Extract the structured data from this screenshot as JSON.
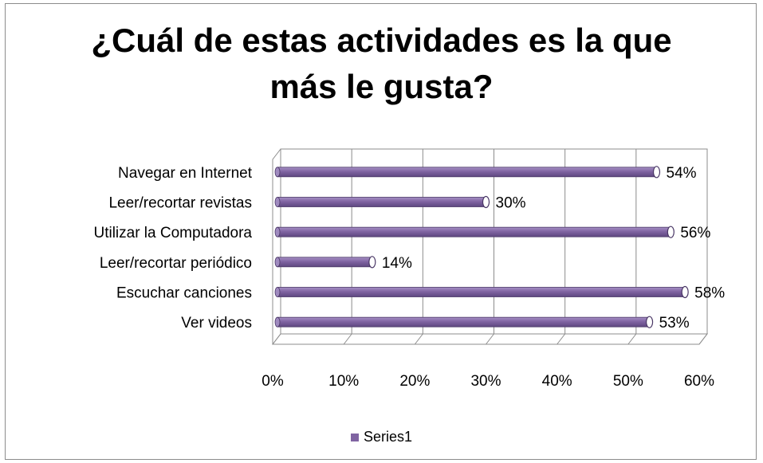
{
  "chart_data": {
    "type": "bar",
    "orientation": "horizontal",
    "title_lines": [
      "¿Cuál de estas actividades es la que",
      "más le gusta?"
    ],
    "categories": [
      "Navegar en Internet",
      "Leer/recortar revistas",
      "Utilizar la Computadora",
      "Leer/recortar periódico",
      "Escuchar canciones",
      "Ver videos"
    ],
    "series": [
      {
        "name": "Series1",
        "values": [
          54,
          30,
          56,
          14,
          58,
          53
        ],
        "labels": [
          "54%",
          "30%",
          "56%",
          "14%",
          "58%",
          "53%"
        ],
        "color": "#8064a2"
      }
    ],
    "xlim": [
      0,
      60
    ],
    "xticks": [
      "0%",
      "10%",
      "20%",
      "30%",
      "40%",
      "50%",
      "60%"
    ],
    "grid": true,
    "legend_position": "bottom"
  }
}
